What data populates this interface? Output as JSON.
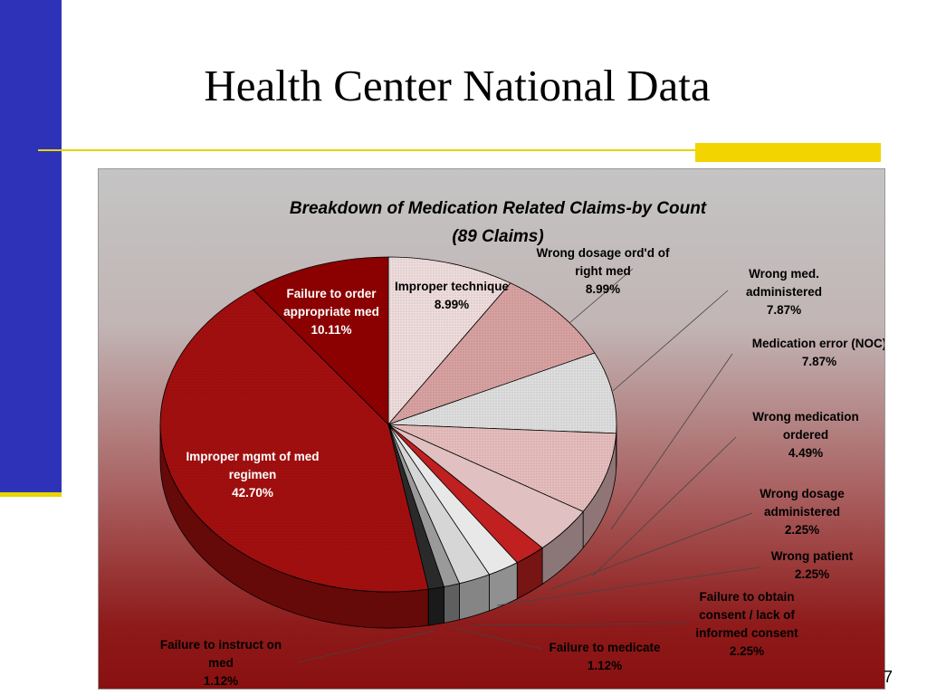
{
  "slide": {
    "title": "Health Center National Data",
    "page_number": "7"
  },
  "colors": {
    "left_bar": "#2e32b8",
    "accent_yellow": "#f2d400",
    "dark_red": "#8b0000"
  },
  "chart_data": {
    "type": "pie",
    "variant": "3d-exploded",
    "title": "Breakdown of Medication Related Claims-by Count",
    "subtitle": "(89 Claims)",
    "total_claims": 89,
    "slices": [
      {
        "label": "Improper technique",
        "percent_label": "8.99%",
        "value": 8.99,
        "color": "#efdcdc",
        "pattern": "dots"
      },
      {
        "label": "Wrong dosage ord'd of right med",
        "percent_label": "8.99%",
        "value": 8.99,
        "color": "#d9a2a2",
        "pattern": "dots"
      },
      {
        "label": "Wrong med. administered",
        "percent_label": "7.87%",
        "value": 7.87,
        "color": "#dedede",
        "pattern": "dots"
      },
      {
        "label": "Medication error (NOC)",
        "percent_label": "7.87%",
        "value": 7.87,
        "color": "#e6bdbd",
        "pattern": "dots"
      },
      {
        "label": "Wrong medication ordered",
        "percent_label": "4.49%",
        "value": 4.49,
        "color": "#e0c0c0",
        "pattern": "none"
      },
      {
        "label": "Wrong dosage administered",
        "percent_label": "2.25%",
        "value": 2.25,
        "color": "#c02020",
        "pattern": "none"
      },
      {
        "label": "Wrong patient",
        "percent_label": "2.25%",
        "value": 2.25,
        "color": "#e8e8e8",
        "pattern": "none"
      },
      {
        "label": "Failure to obtain consent / lack of informed consent",
        "percent_label": "2.25%",
        "value": 2.25,
        "color": "#d6d6d6",
        "pattern": "none"
      },
      {
        "label": "Failure to medicate",
        "percent_label": "1.12%",
        "value": 1.12,
        "color": "#9a9a9a",
        "pattern": "none"
      },
      {
        "label": "Failure to instruct on med",
        "percent_label": "1.12%",
        "value": 1.12,
        "color": "#2a2a2a",
        "pattern": "none"
      },
      {
        "label": "Improper mgmt of med regimen",
        "percent_label": "42.70%",
        "value": 42.7,
        "color": "#a30f0f",
        "pattern": "dots"
      },
      {
        "label": "Failure to order appropriate med",
        "percent_label": "10.11%",
        "value": 10.11,
        "color": "#8b0000",
        "pattern": "none"
      }
    ],
    "legend": "none"
  }
}
